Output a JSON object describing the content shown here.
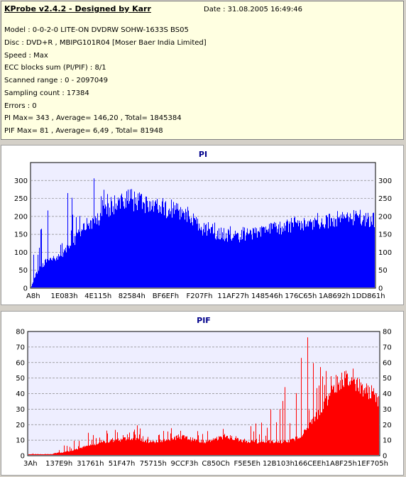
{
  "info": {
    "title": "KProbe v2.4.2 - Designed by Karr",
    "date": "Date : 31.08.2005 16:49:46",
    "lines": [
      "Model : 0-0-2-0 LITE-ON DVDRW SOHW-1633S BS05",
      "Disc : DVD+R , MBIPG101R04 [Moser Baer India Limited]",
      "Speed : Max",
      "ECC blocks sum (PI/PIF) : 8/1",
      "Scanned range : 0 - 2097049",
      "Sampling count : 17384",
      "Errors : 0",
      "PI Max= 343 , Average= 146,20 , Total= 1845384",
      "PIF Max= 81 , Average= 6,49 , Total= 81948"
    ]
  },
  "colors": {
    "background": "#d4d0c8",
    "info_bg": "#ffffe1",
    "plot_bg": "#eeeeff",
    "pi_color": "#0000ff",
    "pif_color": "#ff0000",
    "title_color": "#00008b"
  },
  "chart_data": [
    {
      "type": "area",
      "title": "PI",
      "ylim": [
        0,
        350
      ],
      "yticks": [
        0,
        50,
        100,
        150,
        200,
        250,
        300
      ],
      "xticks": [
        "A8h",
        "1E083h",
        "4E115h",
        "82584h",
        "BF6EFh",
        "F207Fh",
        "11AF27h",
        "148546h",
        "176C65h",
        "1A8692h",
        "1DD861h"
      ],
      "grid": true,
      "color": "#0000ff",
      "series": [
        {
          "values": [
            5,
            40,
            60,
            72,
            78,
            85,
            90,
            100,
            112,
            130,
            150,
            165,
            175,
            180,
            190,
            200,
            210,
            220,
            235,
            245,
            250,
            248,
            245,
            240,
            235,
            230,
            228,
            226,
            224,
            222,
            220,
            218,
            215,
            210,
            200,
            185,
            175,
            165,
            160,
            155,
            150,
            148,
            146,
            145,
            145,
            146,
            148,
            150,
            152,
            155,
            158,
            160,
            163,
            166,
            170,
            172,
            175,
            178,
            180,
            182,
            184,
            186,
            188,
            190,
            190,
            191,
            192,
            193,
            194,
            195,
            196,
            195,
            194,
            193,
            192
          ],
          "peaks": [
            110,
            155,
            215,
            245,
            280,
            300,
            330,
            325,
            300,
            310,
            290,
            270,
            260,
            255,
            250,
            250,
            240,
            250,
            235,
            230,
            225,
            215,
            205,
            200,
            195,
            190,
            185,
            180,
            180,
            175,
            175,
            175,
            176,
            178,
            180,
            182,
            184,
            186,
            188,
            190,
            195,
            198,
            200,
            200,
            200,
            200,
            200,
            200,
            200,
            200
          ]
        }
      ]
    },
    {
      "type": "area",
      "title": "PIF",
      "ylim": [
        0,
        80
      ],
      "yticks": [
        0,
        10,
        20,
        30,
        40,
        50,
        60,
        70,
        80
      ],
      "xticks": [
        "3Ah",
        "137E9h",
        "31761h",
        "51F47h",
        "75715h",
        "9CCF3h",
        "C850Ch",
        "F5E5Eh",
        "12B103h",
        "166CEEh",
        "1A8F25h",
        "1EF705h"
      ],
      "grid": true,
      "color": "#ff0000",
      "series": [
        {
          "values": [
            1,
            1,
            1,
            1,
            1,
            2,
            2,
            3,
            4,
            5,
            6,
            7,
            8,
            9,
            9,
            10,
            10,
            11,
            11,
            10,
            10,
            9,
            9,
            10,
            10,
            11,
            12,
            12,
            11,
            10,
            9,
            9,
            10,
            11,
            12,
            12,
            11,
            10,
            9,
            9,
            9,
            9,
            9,
            9,
            9,
            9,
            10,
            12,
            15,
            20,
            25,
            30,
            35,
            40,
            45,
            50,
            48,
            46,
            44,
            42,
            40,
            35
          ],
          "peaks": [
            2,
            2,
            3,
            4,
            7,
            10,
            12,
            14,
            16,
            18,
            19,
            17,
            18,
            20,
            22,
            18,
            20,
            16,
            18,
            20,
            22,
            18,
            16,
            17,
            18,
            19,
            20,
            20,
            22,
            24,
            28,
            38,
            45,
            55,
            65,
            81,
            70,
            60,
            55,
            52,
            55,
            58,
            50,
            45,
            40
          ]
        }
      ]
    }
  ]
}
